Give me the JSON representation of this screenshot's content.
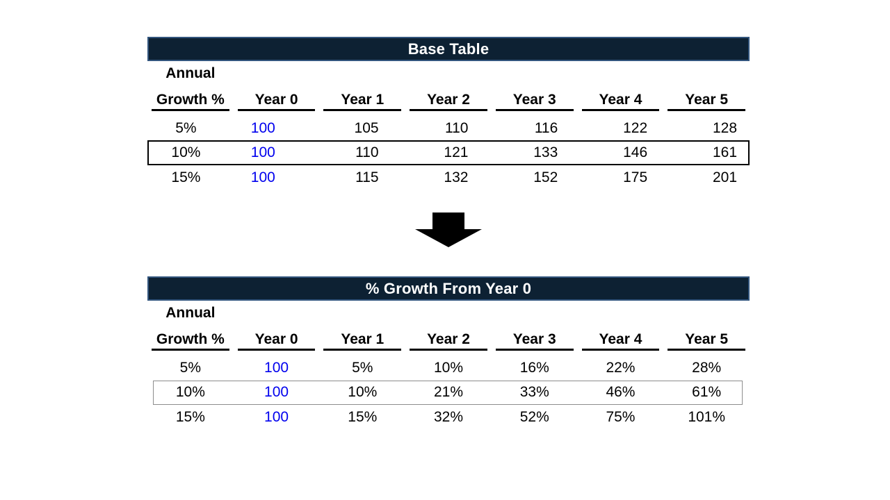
{
  "colors": {
    "page_background": "#ffffff",
    "title_bar_background": "#0d2133",
    "title_bar_border": "#33567e",
    "title_text": "#ffffff",
    "body_text": "#000000",
    "year0_value_blue": "#0000ee",
    "highlight_outline_strong": "#000000",
    "highlight_outline_light": "#8c8c8c",
    "arrow_fill": "#000000"
  },
  "arrow": {
    "shape": "block-arrow-down",
    "color": "#000000"
  },
  "chart_data": [
    {
      "type": "table",
      "title": "Base Table",
      "row_header": {
        "line1": "Annual",
        "line2": "Growth %"
      },
      "columns": [
        "Year 0",
        "Year 1",
        "Year 2",
        "Year 3",
        "Year 4",
        "Year 5"
      ],
      "rows": [
        {
          "label": "5%",
          "values": [
            "100",
            "105",
            "110",
            "116",
            "122",
            "128"
          ],
          "highlighted": false
        },
        {
          "label": "10%",
          "values": [
            "100",
            "110",
            "121",
            "133",
            "146",
            "161"
          ],
          "highlighted": true
        },
        {
          "label": "15%",
          "values": [
            "100",
            "115",
            "132",
            "152",
            "175",
            "201"
          ],
          "highlighted": false
        }
      ],
      "highlight_style": "strong",
      "notes": "Year 0 values shown in blue; 10% row outlined in black"
    },
    {
      "type": "table",
      "title": "% Growth From Year 0",
      "row_header": {
        "line1": "Annual",
        "line2": "Growth %"
      },
      "columns": [
        "Year 0",
        "Year 1",
        "Year 2",
        "Year 3",
        "Year 4",
        "Year 5"
      ],
      "rows": [
        {
          "label": "5%",
          "values": [
            "100",
            "5%",
            "10%",
            "16%",
            "22%",
            "28%"
          ],
          "highlighted": false
        },
        {
          "label": "10%",
          "values": [
            "100",
            "10%",
            "21%",
            "33%",
            "46%",
            "61%"
          ],
          "highlighted": true
        },
        {
          "label": "15%",
          "values": [
            "100",
            "15%",
            "32%",
            "52%",
            "75%",
            "101%"
          ],
          "highlighted": false
        }
      ],
      "highlight_style": "light",
      "notes": "Year 0 values shown in blue; 10% row outlined in thin gray"
    }
  ]
}
